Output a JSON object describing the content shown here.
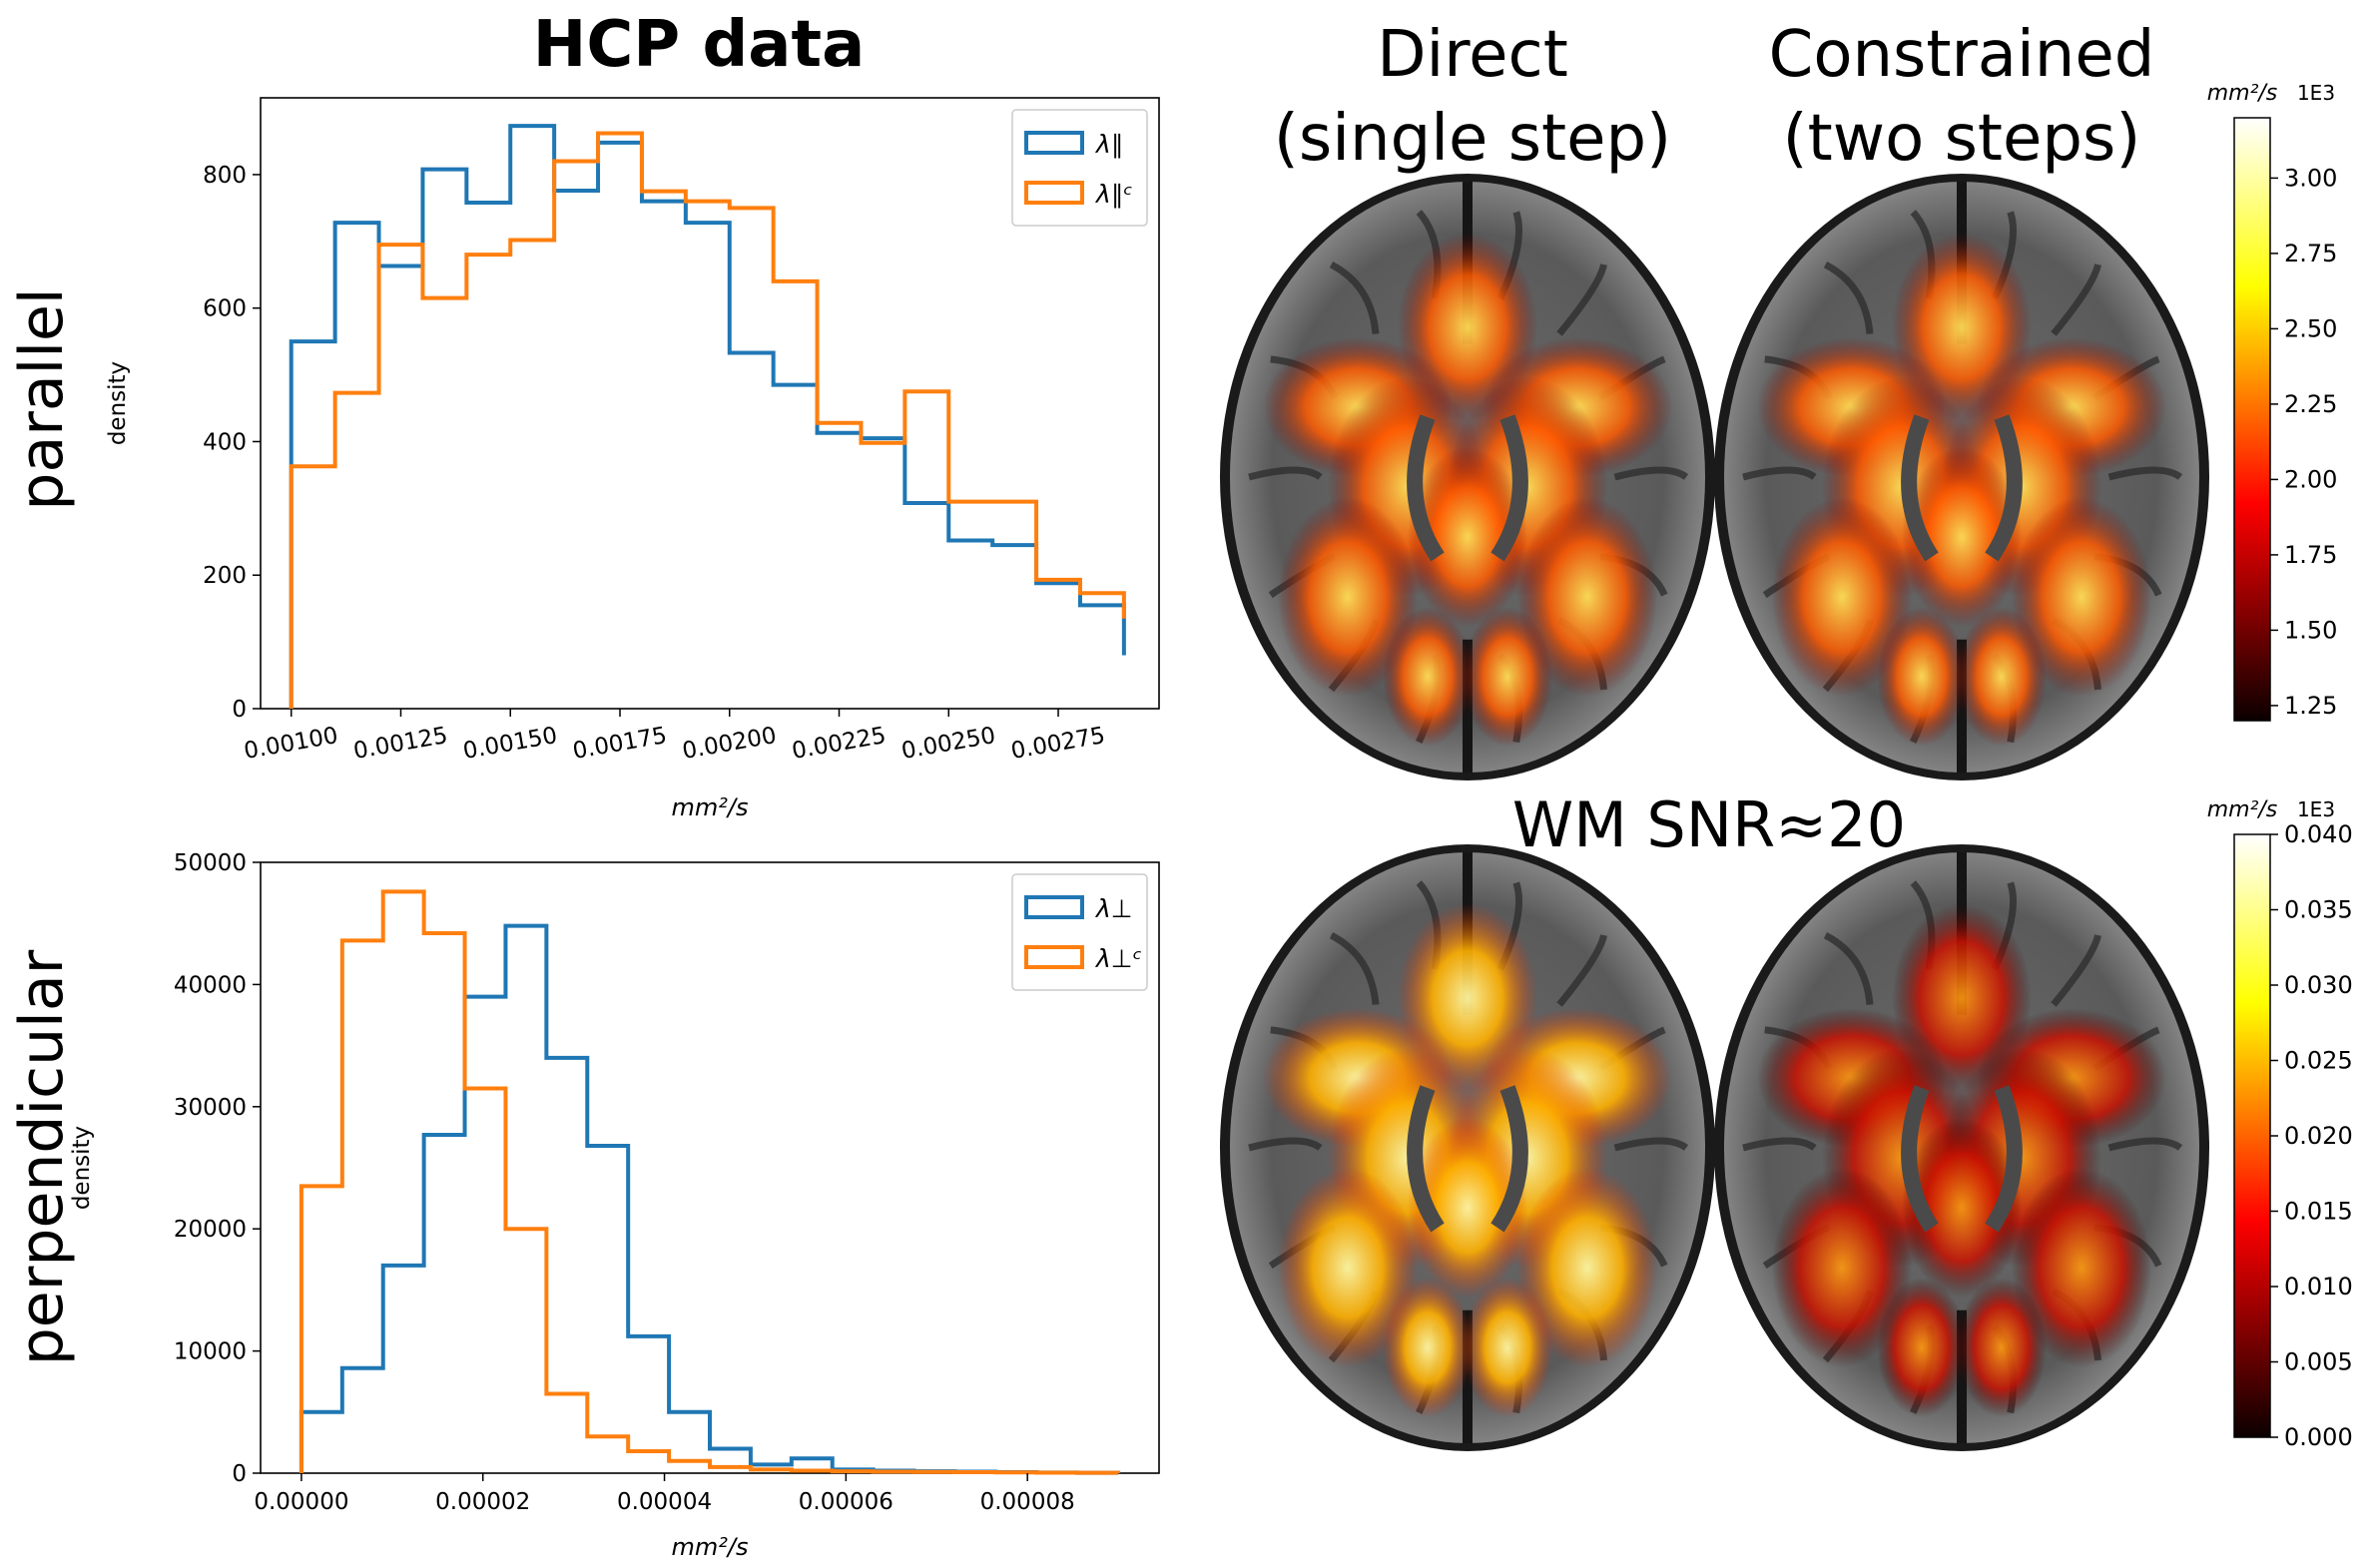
{
  "figure": {
    "title": "HCP data",
    "row_labels": [
      "parallel",
      "perpendicular"
    ],
    "column_titles": [
      [
        "Direct",
        "(single step)"
      ],
      [
        "Constrained",
        "(two steps)"
      ]
    ],
    "snr_label": "WM SNR≈20",
    "colorbar_unit": "mm²/s",
    "colorbar_multiplier": "1E3",
    "colors": {
      "blue": "#1f77b4",
      "orange": "#ff7f0e"
    }
  },
  "chart_data": [
    {
      "type": "histogram",
      "name": "parallel",
      "xlabel": "mm²/s",
      "ylabel": "density",
      "xlim": [
        0.00093,
        0.00298
      ],
      "ylim": [
        0,
        915
      ],
      "xticks": [
        0.001,
        0.00125,
        0.0015,
        0.00175,
        0.002,
        0.00225,
        0.0025,
        0.00275
      ],
      "xtick_labels": [
        "0.00100",
        "0.00125",
        "0.00150",
        "0.00175",
        "0.00200",
        "0.00225",
        "0.00250",
        "0.00275"
      ],
      "yticks": [
        0,
        200,
        400,
        600,
        800
      ],
      "ytick_labels": [
        "0",
        "200",
        "400",
        "600",
        "800"
      ],
      "legend": "top-right",
      "bin_edges": [
        0.001,
        0.0011,
        0.0012,
        0.0013,
        0.0014,
        0.0015,
        0.0016,
        0.0017,
        0.0018,
        0.0019,
        0.002,
        0.0021,
        0.0022,
        0.0023,
        0.0024,
        0.0025,
        0.0026,
        0.0027,
        0.0028,
        0.0029
      ],
      "series": [
        {
          "name": "λ∥",
          "color": "#1f77b4",
          "values": [
            550,
            728,
            663,
            808,
            758,
            873,
            776,
            848,
            760,
            728,
            533,
            485,
            413,
            405,
            308,
            252,
            245,
            188,
            155,
            80
          ]
        },
        {
          "name": "λ∥ᶜ",
          "color": "#ff7f0e",
          "values": [
            363,
            473,
            695,
            615,
            680,
            702,
            820,
            862,
            775,
            760,
            750,
            640,
            428,
            398,
            475,
            310,
            310,
            193,
            173,
            135
          ]
        }
      ]
    },
    {
      "type": "histogram",
      "name": "perpendicular",
      "xlabel": "mm²/s",
      "ylabel": "density",
      "xlim": [
        -4.5e-06,
        9.45e-05
      ],
      "ylim": [
        0,
        50000
      ],
      "xticks": [
        0,
        2e-05,
        4e-05,
        6e-05,
        8e-05
      ],
      "xtick_labels": [
        "0.00000",
        "0.00002",
        "0.00004",
        "0.00006",
        "0.00008"
      ],
      "yticks": [
        0,
        10000,
        20000,
        30000,
        40000,
        50000
      ],
      "ytick_labels": [
        "0",
        "10000",
        "20000",
        "30000",
        "40000",
        "50000"
      ],
      "legend": "top-right",
      "bin_edges": [
        0,
        4.5e-06,
        9e-06,
        1.35e-05,
        1.8e-05,
        2.25e-05,
        2.7e-05,
        3.15e-05,
        3.6e-05,
        4.05e-05,
        4.5e-05,
        4.95e-05,
        5.4e-05,
        5.85e-05,
        6.3e-05,
        6.75e-05,
        7.2e-05,
        7.65e-05,
        8.1e-05,
        8.55e-05,
        9e-05
      ],
      "series": [
        {
          "name": "λ⊥",
          "color": "#1f77b4",
          "values": [
            5000,
            8600,
            17000,
            27700,
            39000,
            44800,
            34000,
            26800,
            11200,
            5000,
            2000,
            700,
            1200,
            300,
            200,
            150,
            120,
            80,
            50,
            30
          ]
        },
        {
          "name": "λ⊥ᶜ",
          "color": "#ff7f0e",
          "values": [
            23500,
            43600,
            47600,
            44200,
            31500,
            20000,
            6500,
            3000,
            1800,
            1000,
            500,
            300,
            200,
            150,
            120,
            100,
            80,
            60,
            40,
            30
          ]
        }
      ]
    },
    {
      "type": "colorbar",
      "name": "parallel-colorbar",
      "range": [
        1.2,
        3.2
      ],
      "ticks": [
        1.25,
        1.5,
        1.75,
        2.0,
        2.25,
        2.5,
        2.75,
        3.0
      ],
      "tick_labels": [
        "1.25",
        "1.50",
        "1.75",
        "2.00",
        "2.25",
        "2.50",
        "2.75",
        "3.00"
      ],
      "colormap": "hot"
    },
    {
      "type": "colorbar",
      "name": "perpendicular-colorbar",
      "range": [
        0,
        0.04
      ],
      "ticks": [
        0,
        0.005,
        0.01,
        0.015,
        0.02,
        0.025,
        0.03,
        0.035,
        0.04
      ],
      "tick_labels": [
        "0.000",
        "0.005",
        "0.010",
        "0.015",
        "0.020",
        "0.025",
        "0.030",
        "0.035",
        "0.040"
      ],
      "colormap": "hot"
    }
  ]
}
